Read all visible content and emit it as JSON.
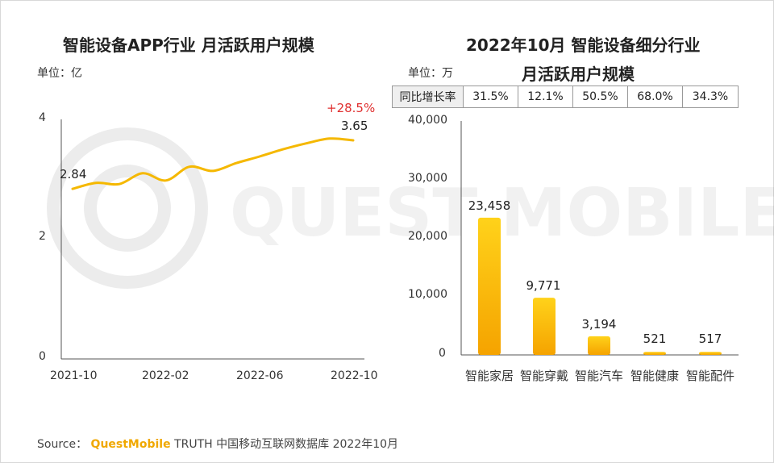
{
  "watermark": "QUEST MOBILE",
  "left_chart": {
    "title": "智能设备APP行业 月活跃用户规模",
    "unit": "单位：亿",
    "growth_label": "+28.5%",
    "start_label": "2.84",
    "end_label": "3.65",
    "y_ticks": [
      "4",
      "2",
      "0"
    ],
    "x_ticks": [
      "2021-10",
      "2022-02",
      "2022-06",
      "2022-10"
    ]
  },
  "right_chart": {
    "title_line1": "2022年10月 智能设备细分行业",
    "title_line2": "月活跃用户规模",
    "unit": "单位：万",
    "yoy_header": "同比增长率",
    "yoy_values": [
      "31.5%",
      "12.1%",
      "50.5%",
      "68.0%",
      "34.3%"
    ],
    "y_ticks": [
      "40,000",
      "30,000",
      "20,000",
      "10,000",
      "0"
    ],
    "bar_labels": [
      "23,458",
      "9,771",
      "3,194",
      "521",
      "517"
    ],
    "categories": [
      "智能家居",
      "智能穿戴",
      "智能汽车",
      "智能健康",
      "智能配件"
    ]
  },
  "footer": {
    "source_prefix": "Source：",
    "brand": "QuestMobile",
    "source_text": "TRUTH 中国移动互联网数据库 2022年10月"
  },
  "colors": {
    "line": "#f5b800",
    "bar_top": "#ffd21a",
    "bar_bottom": "#f5a300",
    "growth": "#e03030"
  },
  "chart_data": [
    {
      "type": "line",
      "title": "智能设备APP行业 月活跃用户规模",
      "ylabel": "单位：亿",
      "x": [
        "2021-10",
        "2021-11",
        "2021-12",
        "2022-01",
        "2022-02",
        "2022-03",
        "2022-04",
        "2022-05",
        "2022-06",
        "2022-07",
        "2022-08",
        "2022-09",
        "2022-10"
      ],
      "values": [
        2.84,
        2.94,
        2.92,
        3.1,
        2.98,
        3.21,
        3.14,
        3.27,
        3.38,
        3.5,
        3.6,
        3.68,
        3.65
      ],
      "ylim": [
        0,
        4
      ],
      "annotations": [
        "2.84",
        "3.65",
        "+28.5%"
      ]
    },
    {
      "type": "bar",
      "title": "2022年10月 智能设备细分行业 月活跃用户规模",
      "ylabel": "单位：万",
      "categories": [
        "智能家居",
        "智能穿戴",
        "智能汽车",
        "智能健康",
        "智能配件"
      ],
      "values": [
        23458,
        9771,
        3194,
        521,
        517
      ],
      "yoy": [
        "31.5%",
        "12.1%",
        "50.5%",
        "68.0%",
        "34.3%"
      ],
      "ylim": [
        0,
        40000
      ]
    }
  ]
}
